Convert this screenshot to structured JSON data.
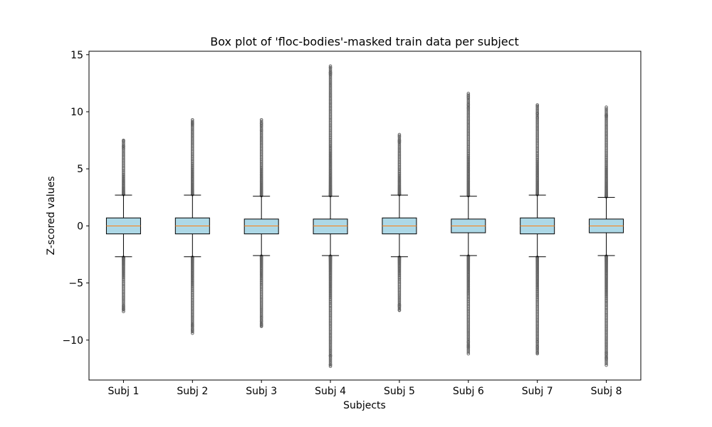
{
  "chart_data": {
    "type": "box",
    "title": "Box plot of 'floc-bodies'-masked train data per subject",
    "xlabel": "Subjects",
    "ylabel": "Z-scored values",
    "ylim": [
      -13.5,
      15.3
    ],
    "yticks": [
      -10,
      -5,
      0,
      5,
      10,
      15
    ],
    "ytick_labels": [
      "−10",
      "−5",
      "0",
      "5",
      "10",
      "15"
    ],
    "categories": [
      "Subj 1",
      "Subj 2",
      "Subj 3",
      "Subj 4",
      "Subj 5",
      "Subj 6",
      "Subj 7",
      "Subj 8"
    ],
    "boxes": [
      {
        "name": "Subj 1",
        "whisker_low": -2.7,
        "q1": -0.7,
        "median": 0.0,
        "q3": 0.7,
        "whisker_high": 2.7,
        "outlier_low_min": -7.5,
        "outlier_high_max": 7.5
      },
      {
        "name": "Subj 2",
        "whisker_low": -2.7,
        "q1": -0.7,
        "median": 0.0,
        "q3": 0.7,
        "whisker_high": 2.7,
        "outlier_low_min": -9.4,
        "outlier_high_max": 9.3
      },
      {
        "name": "Subj 3",
        "whisker_low": -2.6,
        "q1": -0.7,
        "median": 0.0,
        "q3": 0.6,
        "whisker_high": 2.6,
        "outlier_low_min": -8.8,
        "outlier_high_max": 9.3
      },
      {
        "name": "Subj 4",
        "whisker_low": -2.6,
        "q1": -0.7,
        "median": 0.0,
        "q3": 0.6,
        "whisker_high": 2.6,
        "outlier_low_min": -12.3,
        "outlier_high_max": 14.0
      },
      {
        "name": "Subj 5",
        "whisker_low": -2.7,
        "q1": -0.7,
        "median": 0.0,
        "q3": 0.7,
        "whisker_high": 2.7,
        "outlier_low_min": -7.4,
        "outlier_high_max": 8.0
      },
      {
        "name": "Subj 6",
        "whisker_low": -2.6,
        "q1": -0.6,
        "median": 0.0,
        "q3": 0.6,
        "whisker_high": 2.6,
        "outlier_low_min": -11.2,
        "outlier_high_max": 11.6
      },
      {
        "name": "Subj 7",
        "whisker_low": -2.7,
        "q1": -0.7,
        "median": 0.0,
        "q3": 0.7,
        "whisker_high": 2.7,
        "outlier_low_min": -11.2,
        "outlier_high_max": 10.6
      },
      {
        "name": "Subj 8",
        "whisker_low": -2.6,
        "q1": -0.6,
        "median": 0.0,
        "q3": 0.6,
        "whisker_high": 2.5,
        "outlier_low_min": -12.2,
        "outlier_high_max": 10.4
      }
    ],
    "colors": {
      "box_fill": "#add8e6",
      "box_edge": "#000000",
      "median": "#ff7f0e",
      "outlier": "#666666"
    },
    "grid": false,
    "legend": false
  }
}
